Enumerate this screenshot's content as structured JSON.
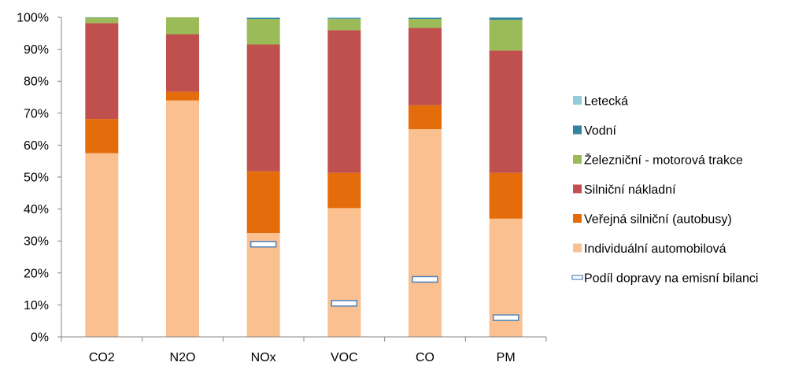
{
  "chart_data": {
    "type": "bar",
    "stacked": true,
    "percent_stacked": true,
    "categories": [
      "CO2",
      "N2O",
      "NOx",
      "VOC",
      "CO",
      "PM"
    ],
    "series": [
      {
        "name": "Individuální automobilová",
        "color": "#FAC090",
        "values": [
          57.5,
          74,
          32.5,
          40.3,
          65,
          37
        ]
      },
      {
        "name": "Veřejná silniční (autobusy)",
        "color": "#E46C0A",
        "values": [
          10.7,
          2.7,
          19.3,
          11,
          7.5,
          14.3
        ]
      },
      {
        "name": "Silniční nákladní",
        "color": "#C0504D",
        "values": [
          30,
          18,
          39.7,
          44.7,
          24.2,
          38.3
        ]
      },
      {
        "name": "Železniční - motorová trakce",
        "color": "#9BBB59",
        "values": [
          1.7,
          5.3,
          8,
          3.5,
          2.8,
          9.6
        ]
      },
      {
        "name": "Vodní",
        "color": "#31859C",
        "values": [
          0.1,
          0,
          0.3,
          0.2,
          0.3,
          0.7
        ]
      },
      {
        "name": "Letecká",
        "color": "#93CDDD",
        "values": [
          0,
          0,
          0.2,
          0.3,
          0.2,
          0.1
        ]
      }
    ],
    "markers": {
      "name": "Podíl dopravy na emisní bilanci",
      "values": [
        null,
        null,
        29,
        10.5,
        18,
        6
      ]
    },
    "yticks": [
      "0%",
      "10%",
      "20%",
      "30%",
      "40%",
      "50%",
      "60%",
      "70%",
      "80%",
      "90%",
      "100%"
    ],
    "ylim": [
      0,
      100
    ],
    "grid": false,
    "legend_position": "right"
  }
}
